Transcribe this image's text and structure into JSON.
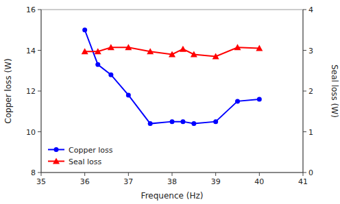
{
  "chart_data": {
    "type": "line",
    "x": [
      36.0,
      36.3,
      36.6,
      37.0,
      37.5,
      38.0,
      38.25,
      38.5,
      39.0,
      39.5,
      40.0
    ],
    "series": [
      {
        "name": "Copper loss",
        "color": "#0000ff",
        "marker": "circle",
        "values": [
          15.0,
          13.3,
          12.8,
          11.8,
          10.4,
          10.5,
          10.5,
          10.4,
          10.5,
          11.5,
          11.6
        ]
      },
      {
        "name": "Seal loss",
        "color": "#ff0000",
        "marker": "triangle",
        "axis": "y2",
        "values": [
          2.97,
          2.97,
          3.07,
          3.07,
          2.97,
          2.9,
          3.03,
          2.9,
          2.85,
          3.07,
          3.05
        ]
      }
    ],
    "xlabel": "Frequence (Hz)",
    "ylabel": "Copper loss (W)",
    "y2label": "Seal loss (W)",
    "xlim": [
      35,
      41
    ],
    "ylim": [
      8,
      16
    ],
    "y2lim": [
      0,
      4
    ],
    "xticks": [
      35,
      36,
      37,
      38,
      39,
      40,
      41
    ],
    "yticks": [
      8,
      10,
      12,
      14,
      16
    ],
    "y2ticks": [
      0,
      1,
      2,
      3,
      4
    ],
    "legend": "lower left",
    "grid": false
  }
}
